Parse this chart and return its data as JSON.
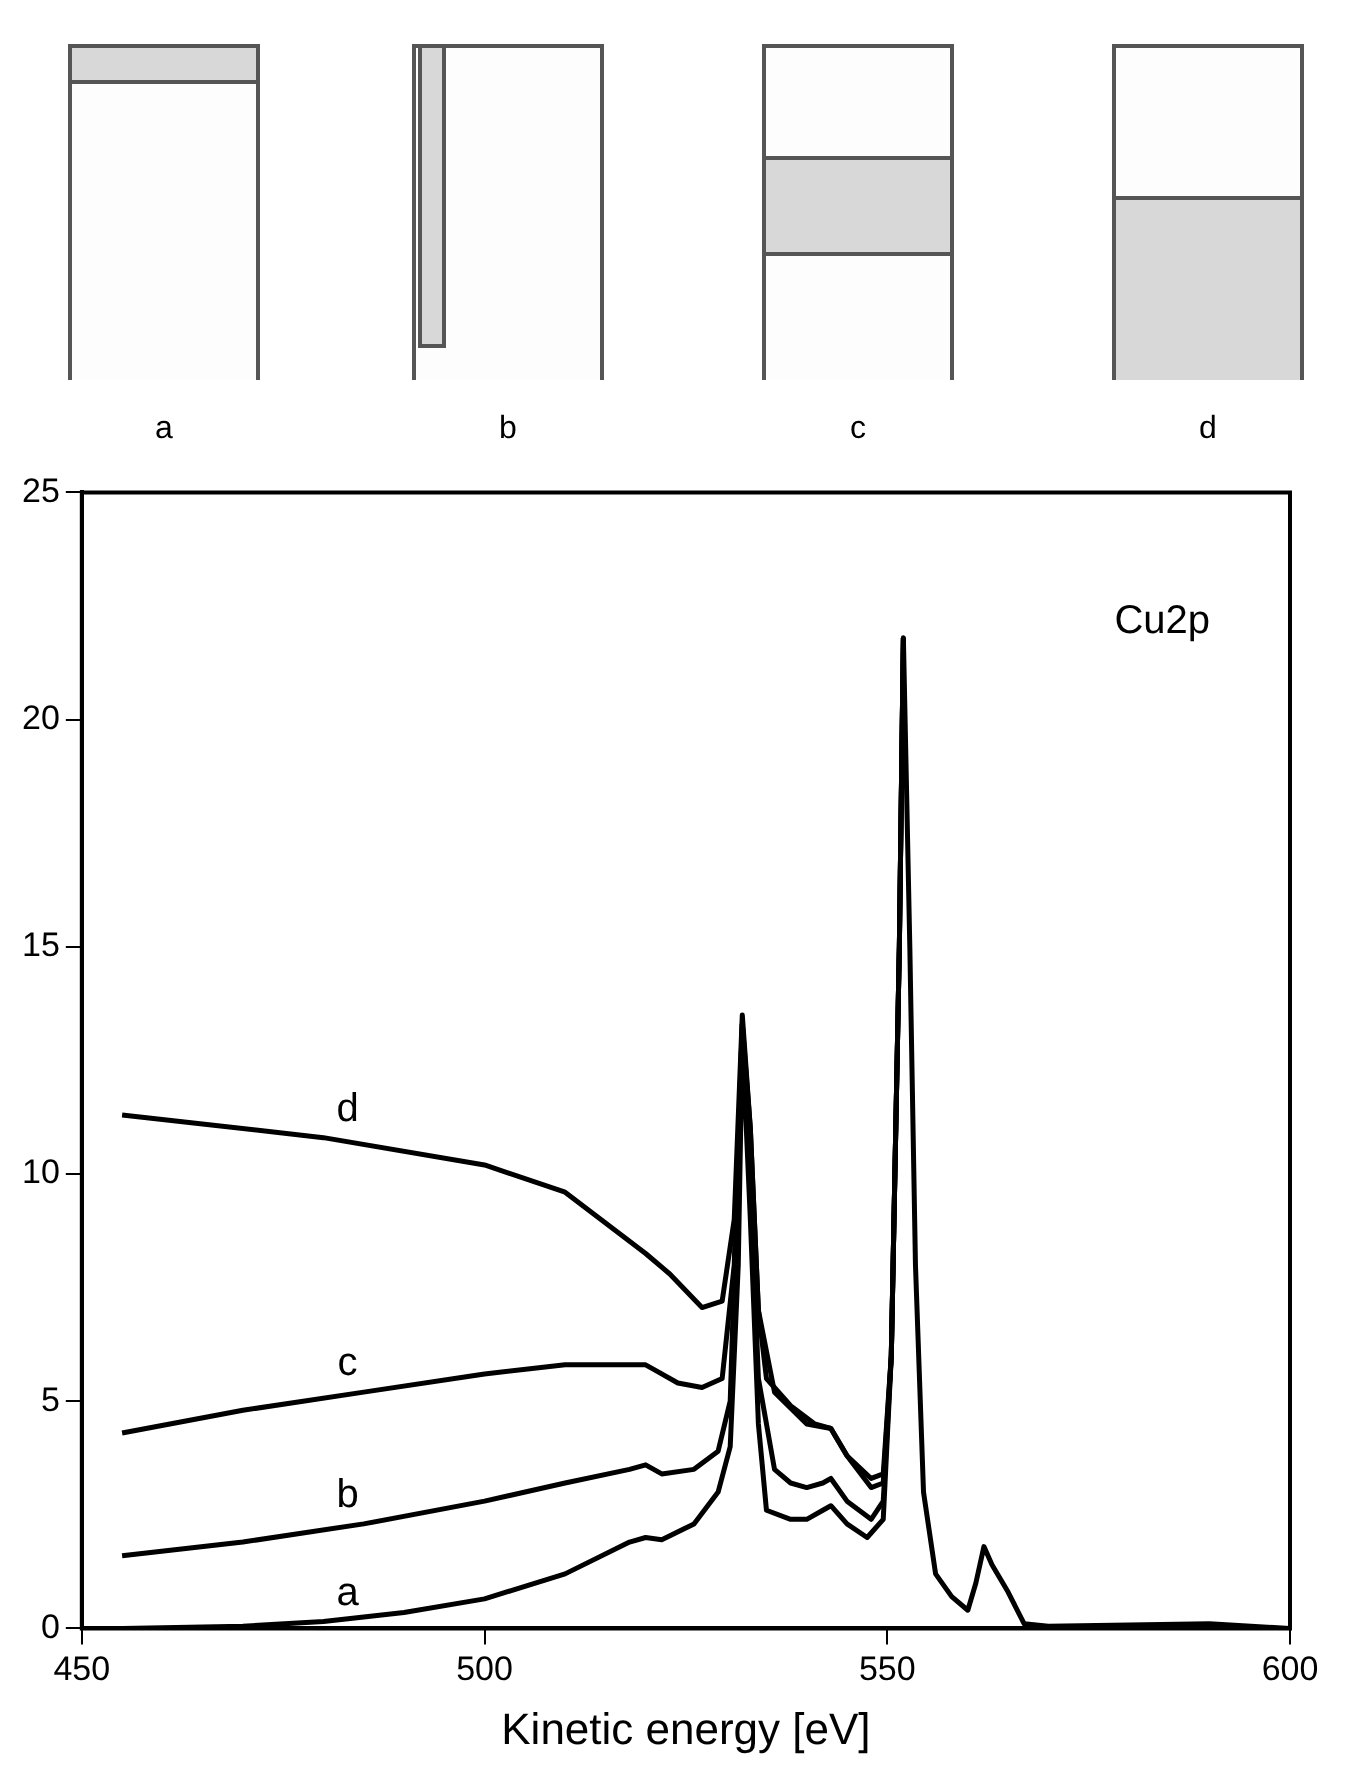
{
  "chart_data": {
    "type": "line",
    "xlabel": "Kinetic energy [eV]",
    "annotations": [
      "Cu2p"
    ],
    "xlim": [
      450,
      600
    ],
    "xticks": [
      450,
      500,
      550,
      600
    ],
    "ylim": [
      0,
      25
    ],
    "yticks": [
      0,
      5,
      10,
      15,
      20,
      25
    ],
    "grid": false,
    "legend": false,
    "series": [
      {
        "name": "a",
        "color": "#000000",
        "x": [
          455,
          470,
          480,
          490,
          500,
          510,
          518,
          520,
          522,
          526,
          529,
          530.5,
          531.5,
          532,
          533,
          534,
          535,
          538,
          540,
          542,
          543,
          545,
          547.5,
          549.5,
          550.5,
          551.5,
          552,
          552.8,
          553.5,
          554.5,
          556,
          558,
          560,
          561,
          562,
          563,
          565,
          567,
          570,
          590,
          600
        ],
        "values": [
          0,
          0.05,
          0.15,
          0.35,
          0.65,
          1.2,
          1.9,
          2.0,
          1.95,
          2.3,
          3.0,
          4.0,
          8,
          13.0,
          9,
          4.5,
          2.6,
          2.4,
          2.4,
          2.6,
          2.7,
          2.3,
          2.0,
          2.4,
          6,
          15,
          21.8,
          15,
          8,
          3,
          1.2,
          0.7,
          0.4,
          1.0,
          1.8,
          1.4,
          0.8,
          0.1,
          0.05,
          0.1,
          0
        ]
      },
      {
        "name": "b",
        "color": "#000000",
        "x": [
          455,
          470,
          485,
          500,
          510,
          518,
          520,
          522,
          526,
          529,
          530.5,
          532,
          533,
          534,
          536,
          538,
          540,
          542,
          543,
          545,
          548,
          549.5,
          550.5,
          551.5,
          552
        ],
        "values": [
          1.6,
          1.9,
          2.3,
          2.8,
          3.2,
          3.5,
          3.6,
          3.4,
          3.5,
          3.9,
          5,
          13.3,
          10,
          5.5,
          3.5,
          3.2,
          3.1,
          3.2,
          3.3,
          2.8,
          2.4,
          2.8,
          6,
          15,
          21.8
        ]
      },
      {
        "name": "c",
        "color": "#000000",
        "x": [
          455,
          470,
          485,
          500,
          510,
          520,
          521,
          524,
          527,
          529.5,
          531,
          532,
          533,
          534,
          535,
          538,
          541,
          543,
          545,
          548,
          549.5,
          550.5,
          551.5,
          552
        ],
        "values": [
          4.3,
          4.8,
          5.2,
          5.6,
          5.8,
          5.8,
          5.7,
          5.4,
          5.3,
          5.5,
          8,
          13.3,
          11,
          7,
          5.5,
          4.9,
          4.5,
          4.4,
          3.8,
          3.1,
          3.2,
          6,
          15,
          21.8
        ]
      },
      {
        "name": "d",
        "color": "#000000",
        "x": [
          455,
          480,
          500,
          510,
          520,
          523,
          527,
          529.5,
          531,
          532,
          533,
          534,
          536,
          540,
          543,
          545,
          548,
          549.5,
          550.5,
          551.5,
          552
        ],
        "values": [
          11.3,
          10.8,
          10.2,
          9.6,
          8.25,
          7.8,
          7.06,
          7.2,
          9,
          13.5,
          11,
          7,
          5.2,
          4.5,
          4.4,
          3.8,
          3.3,
          3.4,
          6,
          15,
          21.8
        ]
      }
    ]
  }
}
